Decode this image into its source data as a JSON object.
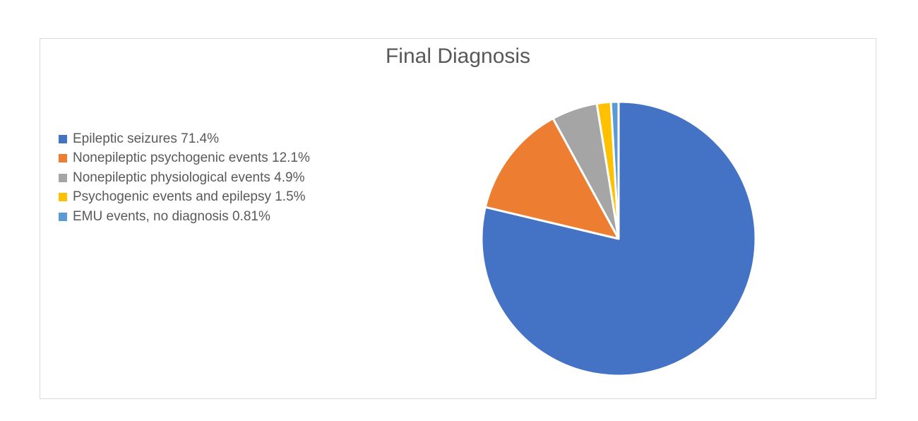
{
  "chart_data": {
    "type": "pie",
    "title": "Final Diagnosis",
    "legend_position": "left",
    "series": [
      {
        "name": "",
        "categories": [
          "Epileptic seizures 71.4%",
          "Nonepileptic psychogenic events 12.1%",
          "Nonepileptic physiological events 4.9%",
          "Psychogenic events and epilepsy 1.5%",
          "EMU events, no diagnosis 0.81%"
        ],
        "values": [
          71.4,
          12.1,
          4.9,
          1.5,
          0.81
        ],
        "colors": [
          "#4472c4",
          "#ed7d31",
          "#a5a5a5",
          "#ffc000",
          "#5b9bd5"
        ]
      }
    ]
  }
}
